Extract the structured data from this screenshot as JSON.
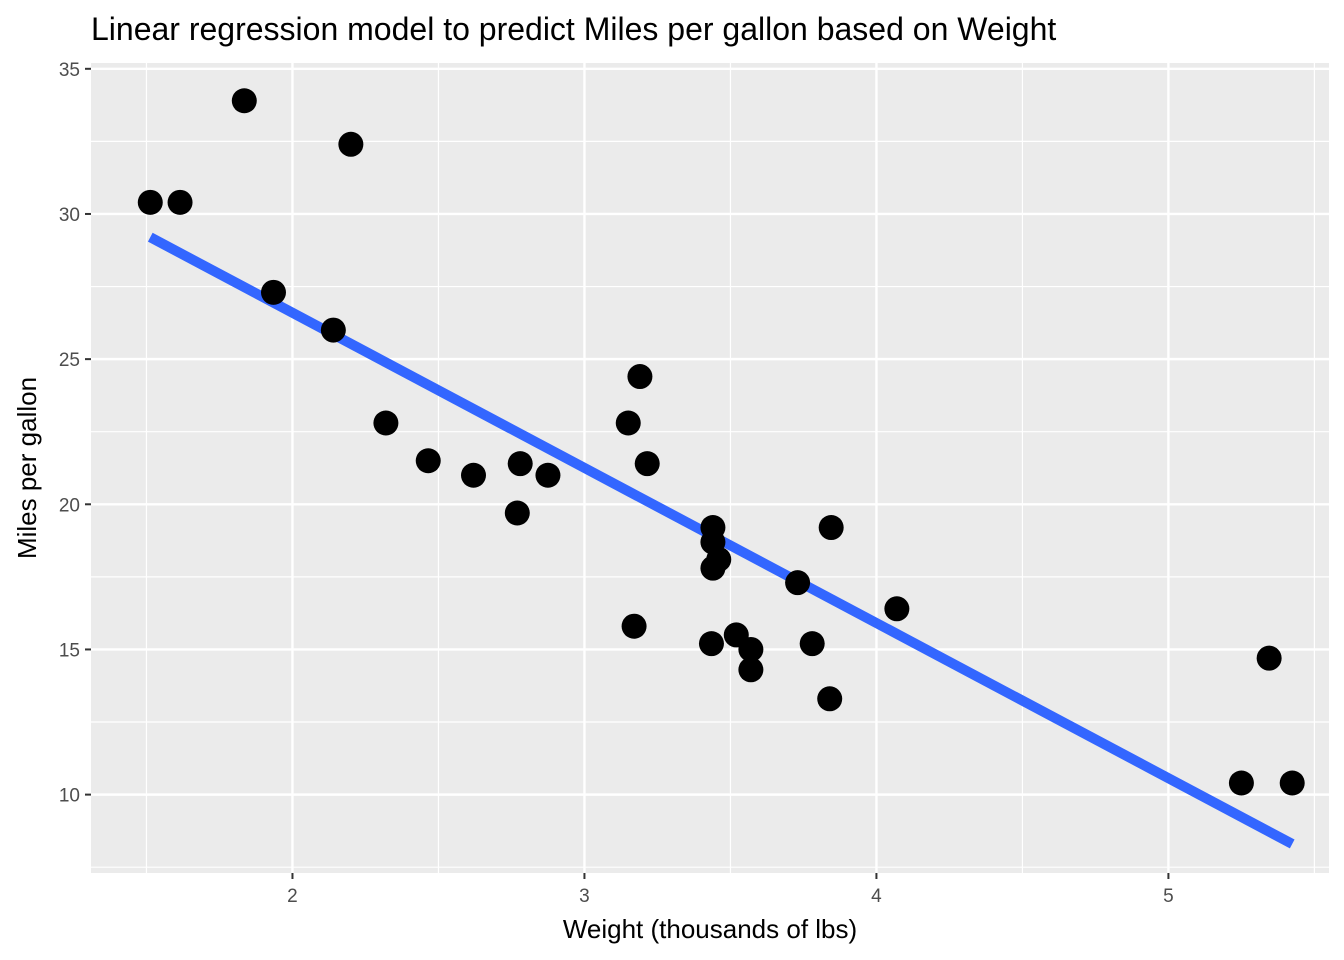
{
  "chart_data": {
    "type": "scatter",
    "title": "Linear regression model to predict Miles per gallon based on Weight",
    "xlabel": "Weight (thousands of lbs)",
    "ylabel": "Miles per gallon",
    "xlim": [
      1.31,
      5.55
    ],
    "ylim": [
      7.3,
      35.2
    ],
    "x_ticks": [
      2,
      3,
      4,
      5
    ],
    "x_tick_labels": [
      "2",
      "3",
      "4",
      "5"
    ],
    "y_ticks": [
      10,
      15,
      20,
      25,
      30,
      35
    ],
    "y_tick_labels": [
      "10",
      "15",
      "20",
      "25",
      "30",
      "35"
    ],
    "grid": true,
    "background": "#ebebeb",
    "series": [
      {
        "type": "scatter",
        "color": "#000000",
        "points": [
          {
            "x": 1.513,
            "y": 30.4
          },
          {
            "x": 1.615,
            "y": 30.4
          },
          {
            "x": 1.835,
            "y": 33.9
          },
          {
            "x": 1.935,
            "y": 27.3
          },
          {
            "x": 2.14,
            "y": 26.0
          },
          {
            "x": 2.2,
            "y": 32.4
          },
          {
            "x": 2.32,
            "y": 22.8
          },
          {
            "x": 2.465,
            "y": 21.5
          },
          {
            "x": 2.62,
            "y": 21.0
          },
          {
            "x": 2.77,
            "y": 19.7
          },
          {
            "x": 2.78,
            "y": 21.4
          },
          {
            "x": 2.875,
            "y": 21.0
          },
          {
            "x": 3.15,
            "y": 22.8
          },
          {
            "x": 3.17,
            "y": 15.8
          },
          {
            "x": 3.19,
            "y": 24.4
          },
          {
            "x": 3.215,
            "y": 21.4
          },
          {
            "x": 3.435,
            "y": 15.2
          },
          {
            "x": 3.44,
            "y": 18.7
          },
          {
            "x": 3.44,
            "y": 19.2
          },
          {
            "x": 3.44,
            "y": 17.8
          },
          {
            "x": 3.46,
            "y": 18.1
          },
          {
            "x": 3.52,
            "y": 15.5
          },
          {
            "x": 3.57,
            "y": 15.0
          },
          {
            "x": 3.57,
            "y": 14.3
          },
          {
            "x": 3.73,
            "y": 17.3
          },
          {
            "x": 3.78,
            "y": 15.2
          },
          {
            "x": 3.84,
            "y": 13.3
          },
          {
            "x": 3.845,
            "y": 19.2
          },
          {
            "x": 4.07,
            "y": 16.4
          },
          {
            "x": 5.25,
            "y": 10.4
          },
          {
            "x": 5.345,
            "y": 14.7
          },
          {
            "x": 5.424,
            "y": 10.4
          }
        ]
      },
      {
        "type": "line",
        "color": "#3366ff",
        "points": [
          {
            "x": 1.513,
            "y": 29.2
          },
          {
            "x": 5.424,
            "y": 8.3
          }
        ]
      }
    ]
  }
}
